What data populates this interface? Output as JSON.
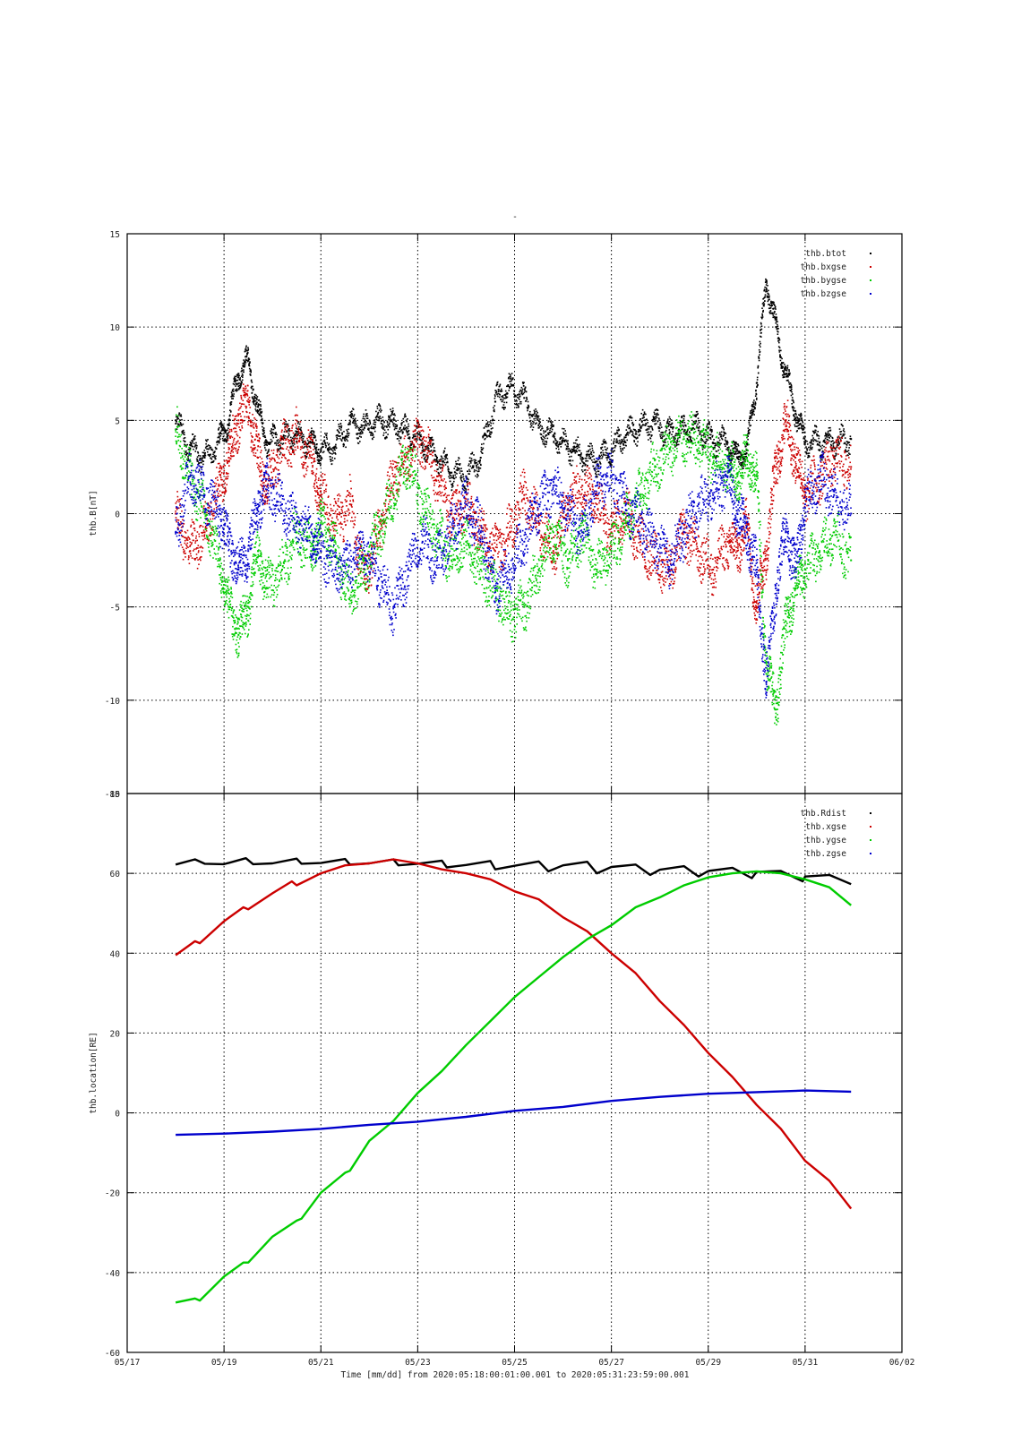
{
  "title": "-",
  "colors": {
    "black": "#000000",
    "red": "#cc0000",
    "green": "#00cc00",
    "blue": "#0000cc"
  },
  "x_axis": {
    "label": "Time [mm/dd]  from 2020:05:18:00:01:00.001  to  2020:05:31:23:59:00.001",
    "range_days": [
      17,
      33
    ],
    "ticks": [
      {
        "day": 17,
        "label": "05/17"
      },
      {
        "day": 19,
        "label": "05/19"
      },
      {
        "day": 21,
        "label": "05/21"
      },
      {
        "day": 23,
        "label": "05/23"
      },
      {
        "day": 25,
        "label": "05/25"
      },
      {
        "day": 27,
        "label": "05/27"
      },
      {
        "day": 29,
        "label": "05/29"
      },
      {
        "day": 31,
        "label": "05/31"
      },
      {
        "day": 33,
        "label": "06/02"
      }
    ]
  },
  "chart_data": [
    {
      "type": "scatter",
      "ylabel": "thb.B[nT]",
      "ylim": [
        -15,
        15
      ],
      "yticks": [
        -15,
        -10,
        -5,
        0,
        5,
        10,
        15
      ],
      "grid": true,
      "legend_position": "top-right",
      "series": [
        {
          "name": "thb.btot",
          "color": "black",
          "x": [
            18.0,
            18.3,
            18.6,
            18.9,
            19.1,
            19.3,
            19.5,
            19.7,
            19.9,
            20.2,
            20.5,
            20.8,
            21.0,
            21.3,
            21.6,
            21.9,
            22.2,
            22.5,
            22.8,
            23.1,
            23.4,
            23.7,
            24.0,
            24.3,
            24.6,
            24.9,
            25.2,
            25.5,
            25.8,
            26.1,
            26.4,
            26.7,
            27.0,
            27.3,
            27.6,
            27.9,
            28.2,
            28.5,
            28.8,
            29.1,
            29.4,
            29.6,
            29.8,
            30.0,
            30.2,
            30.4,
            30.6,
            30.8,
            31.0,
            31.3,
            31.6,
            31.95
          ],
          "y": [
            5.0,
            3.5,
            3.0,
            3.8,
            5.0,
            7.5,
            8.2,
            5.5,
            3.8,
            4.0,
            4.2,
            3.8,
            3.4,
            3.6,
            4.8,
            4.6,
            5.0,
            4.8,
            4.4,
            3.8,
            3.0,
            2.2,
            2.0,
            3.0,
            6.0,
            6.8,
            6.2,
            4.6,
            4.2,
            3.6,
            3.0,
            2.8,
            3.4,
            4.2,
            4.6,
            4.8,
            4.3,
            4.4,
            4.6,
            3.8,
            3.8,
            3.0,
            3.4,
            7.0,
            12.5,
            10.0,
            7.5,
            5.5,
            3.8,
            3.8,
            3.8,
            4.0
          ]
        },
        {
          "name": "thb.bxgse",
          "color": "red",
          "x": [
            18.0,
            18.3,
            18.6,
            18.9,
            19.1,
            19.3,
            19.5,
            19.7,
            19.9,
            20.2,
            20.5,
            20.8,
            21.0,
            21.3,
            21.6,
            21.9,
            22.2,
            22.5,
            22.8,
            23.1,
            23.4,
            23.7,
            24.0,
            24.3,
            24.6,
            24.9,
            25.2,
            25.5,
            25.8,
            26.1,
            26.4,
            26.7,
            27.0,
            27.3,
            27.6,
            27.9,
            28.2,
            28.5,
            28.8,
            29.1,
            29.4,
            29.6,
            29.8,
            30.0,
            30.2,
            30.4,
            30.6,
            30.8,
            31.0,
            31.3,
            31.6,
            31.95
          ],
          "y": [
            0.0,
            -2.0,
            -1.0,
            1.5,
            3.0,
            5.0,
            6.0,
            3.0,
            1.5,
            3.5,
            4.2,
            3.0,
            1.0,
            -0.5,
            0.5,
            -3.5,
            -1.0,
            2.0,
            3.0,
            4.0,
            2.0,
            0.0,
            0.5,
            -1.0,
            -2.0,
            -1.0,
            1.0,
            -0.5,
            -2.0,
            0.5,
            1.5,
            0.5,
            -1.0,
            0.0,
            -1.5,
            -2.5,
            -3.0,
            -1.0,
            -2.0,
            -3.0,
            -1.5,
            -2.0,
            -0.5,
            -5.0,
            -2.0,
            2.5,
            5.0,
            3.0,
            1.0,
            2.0,
            3.0,
            2.5
          ]
        },
        {
          "name": "thb.bygse",
          "color": "green",
          "x": [
            18.0,
            18.3,
            18.6,
            18.9,
            19.1,
            19.3,
            19.5,
            19.7,
            19.9,
            20.2,
            20.5,
            20.8,
            21.0,
            21.3,
            21.6,
            21.9,
            22.2,
            22.5,
            22.8,
            23.1,
            23.4,
            23.7,
            24.0,
            24.3,
            24.6,
            24.9,
            25.2,
            25.5,
            25.8,
            26.1,
            26.4,
            26.7,
            27.0,
            27.3,
            27.6,
            27.9,
            28.2,
            28.5,
            28.8,
            29.1,
            29.4,
            29.6,
            29.8,
            30.0,
            30.2,
            30.4,
            30.6,
            30.8,
            31.0,
            31.3,
            31.6,
            31.95
          ],
          "y": [
            4.5,
            2.0,
            0.0,
            -2.5,
            -5.0,
            -6.5,
            -5.0,
            -2.0,
            -4.0,
            -3.0,
            -1.0,
            -2.0,
            -0.5,
            -2.0,
            -4.5,
            -3.0,
            -1.0,
            1.0,
            3.0,
            0.5,
            -1.0,
            -2.5,
            -1.5,
            -3.0,
            -4.0,
            -5.5,
            -5.0,
            -3.0,
            -1.0,
            -2.5,
            -1.0,
            -3.0,
            -2.0,
            -0.5,
            1.0,
            2.5,
            3.5,
            4.0,
            3.8,
            3.0,
            2.5,
            2.0,
            3.0,
            2.0,
            -8.0,
            -10.5,
            -6.0,
            -4.0,
            -3.0,
            -2.0,
            -1.0,
            -2.5
          ]
        },
        {
          "name": "thb.bzgse",
          "color": "blue",
          "x": [
            18.0,
            18.3,
            18.6,
            18.9,
            19.1,
            19.3,
            19.5,
            19.7,
            19.9,
            20.2,
            20.5,
            20.8,
            21.0,
            21.3,
            21.6,
            21.9,
            22.2,
            22.5,
            22.8,
            23.1,
            23.4,
            23.7,
            24.0,
            24.3,
            24.6,
            24.9,
            25.2,
            25.5,
            25.8,
            26.1,
            26.4,
            26.7,
            27.0,
            27.3,
            27.6,
            27.9,
            28.2,
            28.5,
            28.8,
            29.1,
            29.4,
            29.6,
            29.8,
            30.0,
            30.2,
            30.4,
            30.6,
            30.8,
            31.0,
            31.3,
            31.6,
            31.95
          ],
          "y": [
            -1.0,
            2.0,
            1.0,
            0.0,
            -1.5,
            -3.0,
            -2.0,
            0.5,
            1.5,
            0.5,
            -0.5,
            -1.0,
            -2.0,
            -3.0,
            -2.5,
            -2.0,
            -3.5,
            -5.0,
            -3.0,
            -1.5,
            -2.5,
            -1.0,
            0.5,
            -1.0,
            -4.0,
            -3.0,
            -1.5,
            0.5,
            1.5,
            0.0,
            -1.0,
            1.5,
            2.0,
            0.5,
            -0.5,
            -1.5,
            -2.5,
            -1.0,
            0.5,
            1.0,
            2.0,
            0.0,
            -1.0,
            -3.0,
            -9.0,
            -4.0,
            -1.0,
            -3.0,
            0.5,
            2.0,
            1.0,
            0.0
          ]
        }
      ]
    },
    {
      "type": "line",
      "ylabel": "thb.location[RE]",
      "ylim": [
        -60,
        80
      ],
      "yticks": [
        -60,
        -40,
        -20,
        0,
        20,
        40,
        60,
        80
      ],
      "grid": true,
      "legend_position": "top-right",
      "series": [
        {
          "name": "thb.Rdist",
          "color": "black",
          "x": [
            18.0,
            18.4,
            18.6,
            19.0,
            19.45,
            19.6,
            20.0,
            20.5,
            20.6,
            21.0,
            21.5,
            21.6,
            22.0,
            22.5,
            22.6,
            23.0,
            23.5,
            23.6,
            24.0,
            24.5,
            24.6,
            25.0,
            25.5,
            25.7,
            26.0,
            26.5,
            26.7,
            27.0,
            27.5,
            27.8,
            28.0,
            28.5,
            28.8,
            29.0,
            29.5,
            29.9,
            30.0,
            30.5,
            30.95,
            31.0,
            31.5,
            31.95
          ],
          "y": [
            62.2,
            63.5,
            62.4,
            62.3,
            63.8,
            62.3,
            62.5,
            63.7,
            62.4,
            62.6,
            63.6,
            62.2,
            62.5,
            63.5,
            62.0,
            62.4,
            63.2,
            61.5,
            62.1,
            63.1,
            61.0,
            61.9,
            63.0,
            60.5,
            62.0,
            62.9,
            60.0,
            61.6,
            62.2,
            59.6,
            60.9,
            61.8,
            59.2,
            60.6,
            61.4,
            58.8,
            60.4,
            60.6,
            58.0,
            59.2,
            59.6,
            57.3
          ]
        },
        {
          "name": "thb.xgse",
          "color": "red",
          "x": [
            18.0,
            18.4,
            18.5,
            19.0,
            19.4,
            19.5,
            20.0,
            20.4,
            20.5,
            21.0,
            21.5,
            22.0,
            22.5,
            23.0,
            23.5,
            24.0,
            24.5,
            25.0,
            25.5,
            26.0,
            26.5,
            27.0,
            27.5,
            28.0,
            28.5,
            29.0,
            29.5,
            30.0,
            30.5,
            31.0,
            31.5,
            31.95
          ],
          "y": [
            39.5,
            43.0,
            42.5,
            48.0,
            51.5,
            51.0,
            55.0,
            58.0,
            57.0,
            60.0,
            62.0,
            62.5,
            63.5,
            62.5,
            61.0,
            60.0,
            58.5,
            55.5,
            53.5,
            49.0,
            45.5,
            40.0,
            35.0,
            28.0,
            22.0,
            15.0,
            9.0,
            2.0,
            -4.0,
            -12.0,
            -17.0,
            -24.0
          ]
        },
        {
          "name": "thb.ygse",
          "color": "green",
          "x": [
            18.0,
            18.4,
            18.5,
            19.0,
            19.4,
            19.5,
            20.0,
            20.5,
            20.6,
            21.0,
            21.5,
            21.6,
            22.0,
            22.5,
            23.0,
            23.5,
            24.0,
            24.5,
            25.0,
            25.5,
            26.0,
            26.5,
            27.0,
            27.5,
            28.0,
            28.5,
            29.0,
            29.5,
            30.0,
            30.5,
            31.0,
            31.5,
            31.95
          ],
          "y": [
            -47.5,
            -46.5,
            -47.0,
            -41.0,
            -37.5,
            -37.5,
            -31.0,
            -27.0,
            -26.5,
            -20.0,
            -15.0,
            -14.5,
            -7.0,
            -2.0,
            5.0,
            10.5,
            17.0,
            23.0,
            29.0,
            34.0,
            39.0,
            43.5,
            47.0,
            51.5,
            54.0,
            57.0,
            59.0,
            60.0,
            60.5,
            60.0,
            58.5,
            56.5,
            52.0
          ]
        },
        {
          "name": "thb.zgse",
          "color": "blue",
          "x": [
            18.0,
            19.0,
            20.0,
            21.0,
            22.0,
            23.0,
            24.0,
            25.0,
            26.0,
            27.0,
            28.0,
            29.0,
            30.0,
            31.0,
            31.95
          ],
          "y": [
            -5.5,
            -5.2,
            -4.7,
            -4.0,
            -3.0,
            -2.2,
            -1.0,
            0.5,
            1.5,
            3.0,
            4.0,
            4.8,
            5.2,
            5.6,
            5.3
          ]
        }
      ]
    }
  ]
}
